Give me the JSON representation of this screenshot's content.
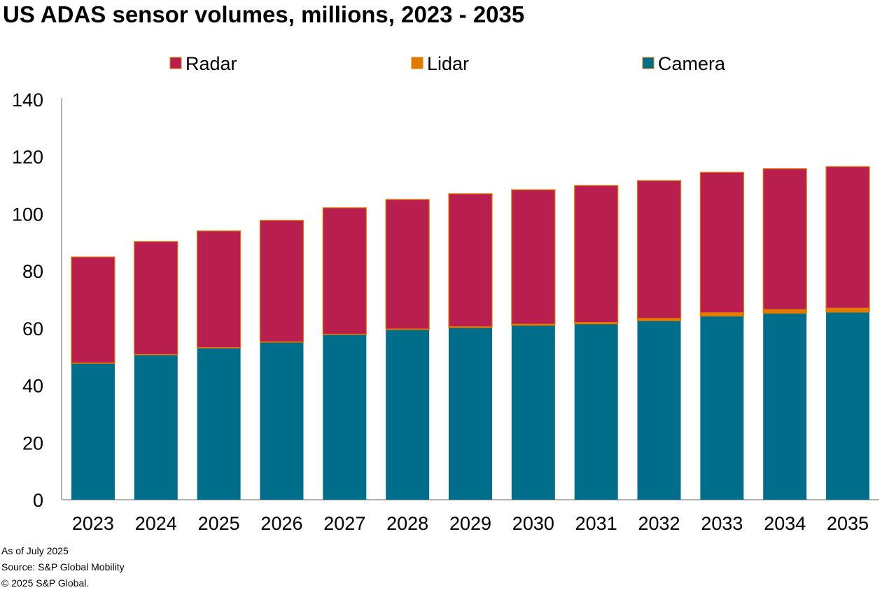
{
  "chart_data": {
    "type": "bar",
    "stacked": true,
    "title": "US ADAS sensor volumes, millions, 2023 - 2035",
    "categories": [
      "2023",
      "2024",
      "2025",
      "2026",
      "2027",
      "2028",
      "2029",
      "2030",
      "2031",
      "2032",
      "2033",
      "2034",
      "2035"
    ],
    "series": [
      {
        "name": "Camera",
        "color": "#006d8a",
        "values": [
          47.7,
          50.7,
          53.1,
          55.1,
          57.8,
          59.5,
          60.2,
          61.0,
          61.5,
          62.6,
          64.2,
          65.2,
          65.6
        ]
      },
      {
        "name": "Lidar",
        "color": "#e07b00",
        "values": [
          0.1,
          0.1,
          0.1,
          0.1,
          0.1,
          0.2,
          0.3,
          0.4,
          0.5,
          0.8,
          1.2,
          1.3,
          1.4
        ]
      },
      {
        "name": "Radar",
        "color": "#b81f4e",
        "values": [
          37.1,
          39.5,
          40.8,
          42.5,
          44.2,
          45.3,
          46.5,
          47.0,
          47.9,
          48.2,
          49.1,
          49.3,
          49.5
        ]
      }
    ],
    "legend_order": [
      "Radar",
      "Lidar",
      "Camera"
    ],
    "legend_position": "top",
    "ylim": [
      0,
      140
    ],
    "yticks": [
      "0",
      "20",
      "40",
      "60",
      "80",
      "100",
      "120",
      "140"
    ],
    "grid": false,
    "xlabel": "",
    "ylabel": ""
  },
  "footer": {
    "line1": "As of July 2025",
    "line2": "Source: S&P Global Mobility",
    "line3": "© 2025 S&P Global."
  }
}
